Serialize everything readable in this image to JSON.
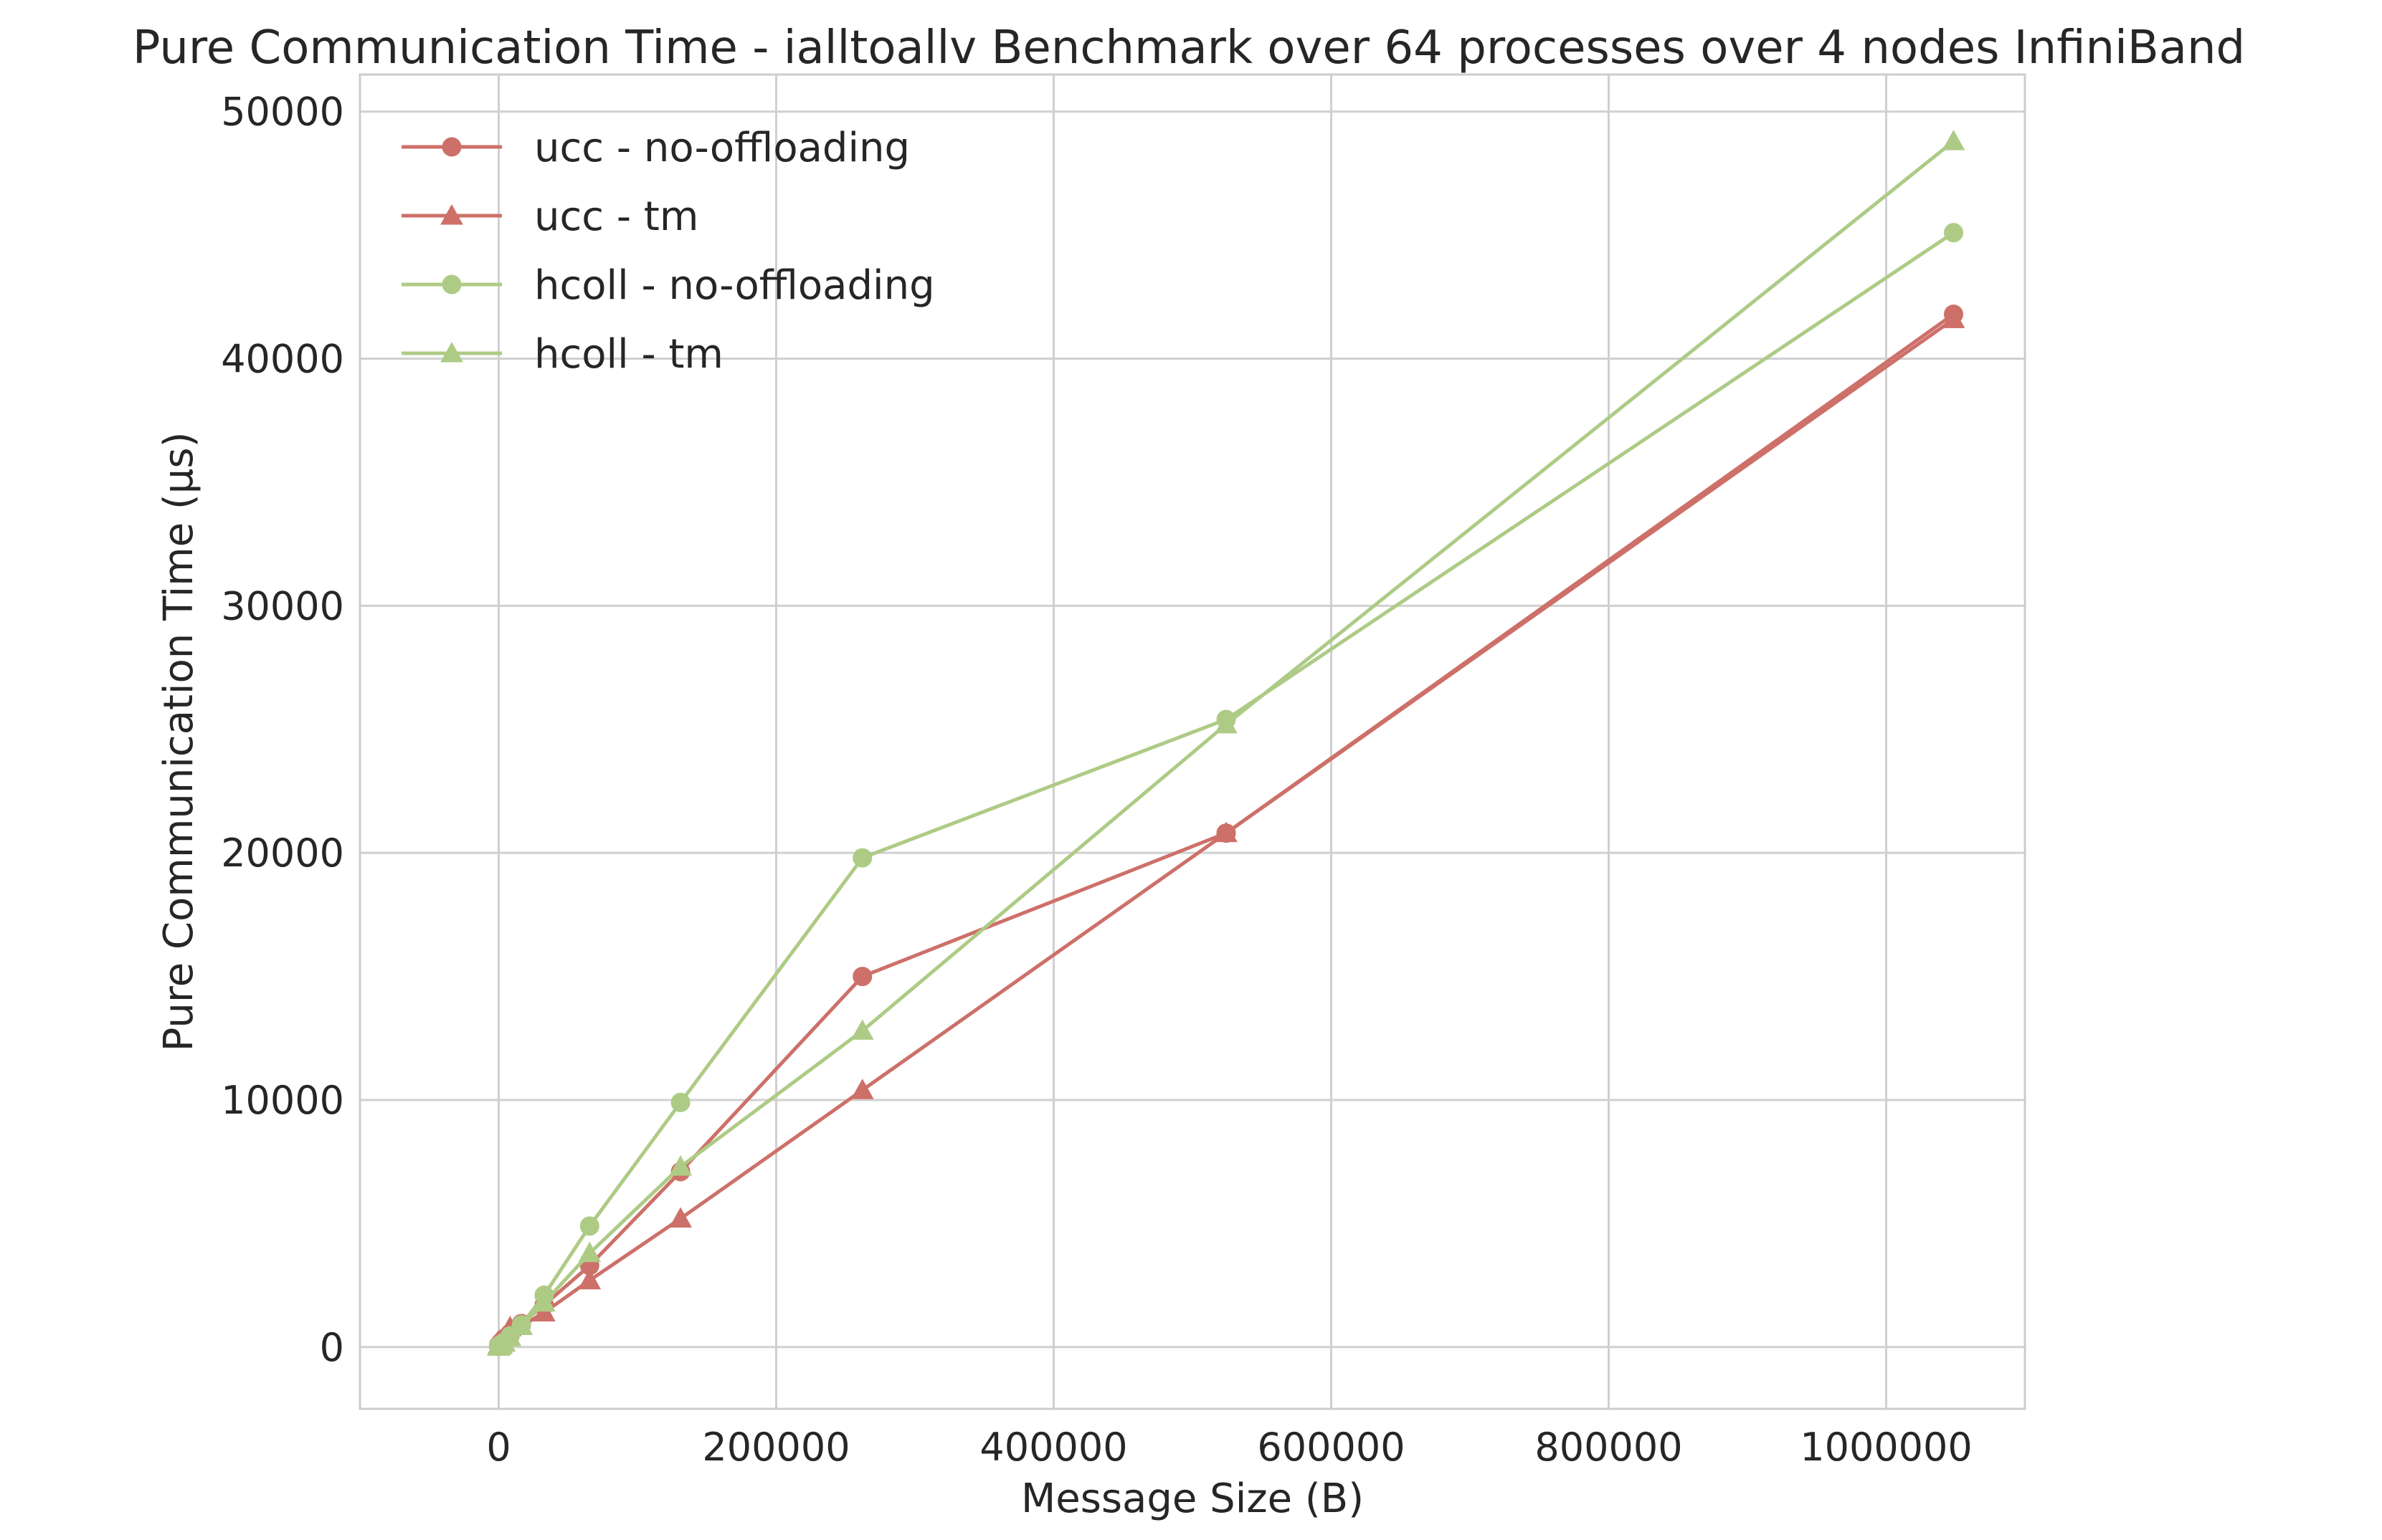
{
  "chart_data": {
    "type": "line",
    "title": "Pure Communication Time - ialltoallv Benchmark over 64 processes over 4 nodes InfiniBand",
    "xlabel": "Message Size (B)",
    "ylabel": "Pure Communication Time (μs)",
    "xlim": [
      -100000,
      1100000
    ],
    "ylim": [
      -2500,
      51500
    ],
    "xticks": [
      0,
      200000,
      400000,
      600000,
      800000,
      1000000
    ],
    "yticks": [
      0,
      10000,
      20000,
      30000,
      40000,
      50000
    ],
    "grid": true,
    "legend_position": "top-left",
    "x": [
      1,
      2,
      4,
      8,
      16,
      32,
      64,
      128,
      256,
      512,
      1024,
      2048,
      4096,
      8192,
      16384,
      32768,
      65536,
      131072,
      262144,
      524288,
      1048576
    ],
    "series": [
      {
        "name": "ucc - no-offloading",
        "color": "#cd7069",
        "marker": "circle",
        "values": [
          60,
          60,
          60,
          60,
          60,
          60,
          70,
          80,
          90,
          110,
          150,
          220,
          350,
          550,
          950,
          1700,
          3300,
          7100,
          15000,
          20800,
          41800
        ]
      },
      {
        "name": "ucc - tm",
        "color": "#cd7069",
        "marker": "triangle",
        "values": [
          50,
          50,
          50,
          50,
          50,
          50,
          60,
          70,
          80,
          100,
          140,
          230,
          400,
          800,
          850,
          1400,
          2700,
          5200,
          10400,
          20800,
          41600
        ]
      },
      {
        "name": "hcoll - no-offloading",
        "color": "#aecb86",
        "marker": "circle",
        "values": [
          30,
          30,
          30,
          30,
          30,
          30,
          40,
          40,
          50,
          60,
          80,
          120,
          200,
          450,
          900,
          2100,
          4900,
          9900,
          19800,
          25400,
          45100
        ]
      },
      {
        "name": "hcoll - tm",
        "color": "#aecb86",
        "marker": "triangle",
        "values": [
          20,
          20,
          20,
          20,
          20,
          20,
          30,
          30,
          40,
          50,
          70,
          100,
          170,
          400,
          850,
          1800,
          3800,
          7300,
          12800,
          25200,
          48800
        ]
      }
    ]
  }
}
